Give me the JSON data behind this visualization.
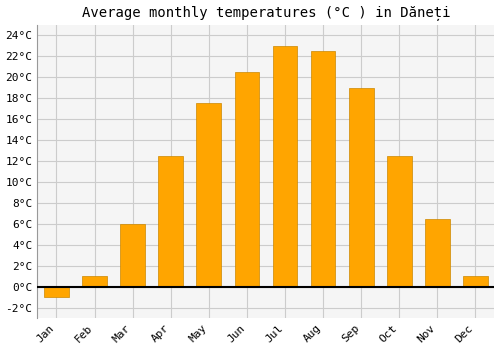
{
  "title": "Average monthly temperatures (°C ) in Dăneți",
  "months": [
    "Jan",
    "Feb",
    "Mar",
    "Apr",
    "May",
    "Jun",
    "Jul",
    "Aug",
    "Sep",
    "Oct",
    "Nov",
    "Dec"
  ],
  "values": [
    -1.0,
    1.0,
    6.0,
    12.5,
    17.5,
    20.5,
    23.0,
    22.5,
    19.0,
    12.5,
    6.5,
    1.0
  ],
  "bar_color": "#FFA500",
  "bar_edge_color": "#CC8800",
  "bar_light_color": "#FFCC55",
  "ylim": [
    -3,
    25
  ],
  "yticks": [
    -2,
    0,
    2,
    4,
    6,
    8,
    10,
    12,
    14,
    16,
    18,
    20,
    22,
    24
  ],
  "ytick_labels": [
    "-2°C",
    "0°C",
    "2°C",
    "4°C",
    "6°C",
    "8°C",
    "10°C",
    "12°C",
    "14°C",
    "16°C",
    "18°C",
    "20°C",
    "22°C",
    "24°C"
  ],
  "background_color": "#ffffff",
  "plot_background": "#f5f5f5",
  "grid_color": "#cccccc",
  "title_fontsize": 10,
  "tick_fontsize": 8,
  "figsize": [
    5.0,
    3.5
  ],
  "dpi": 100
}
